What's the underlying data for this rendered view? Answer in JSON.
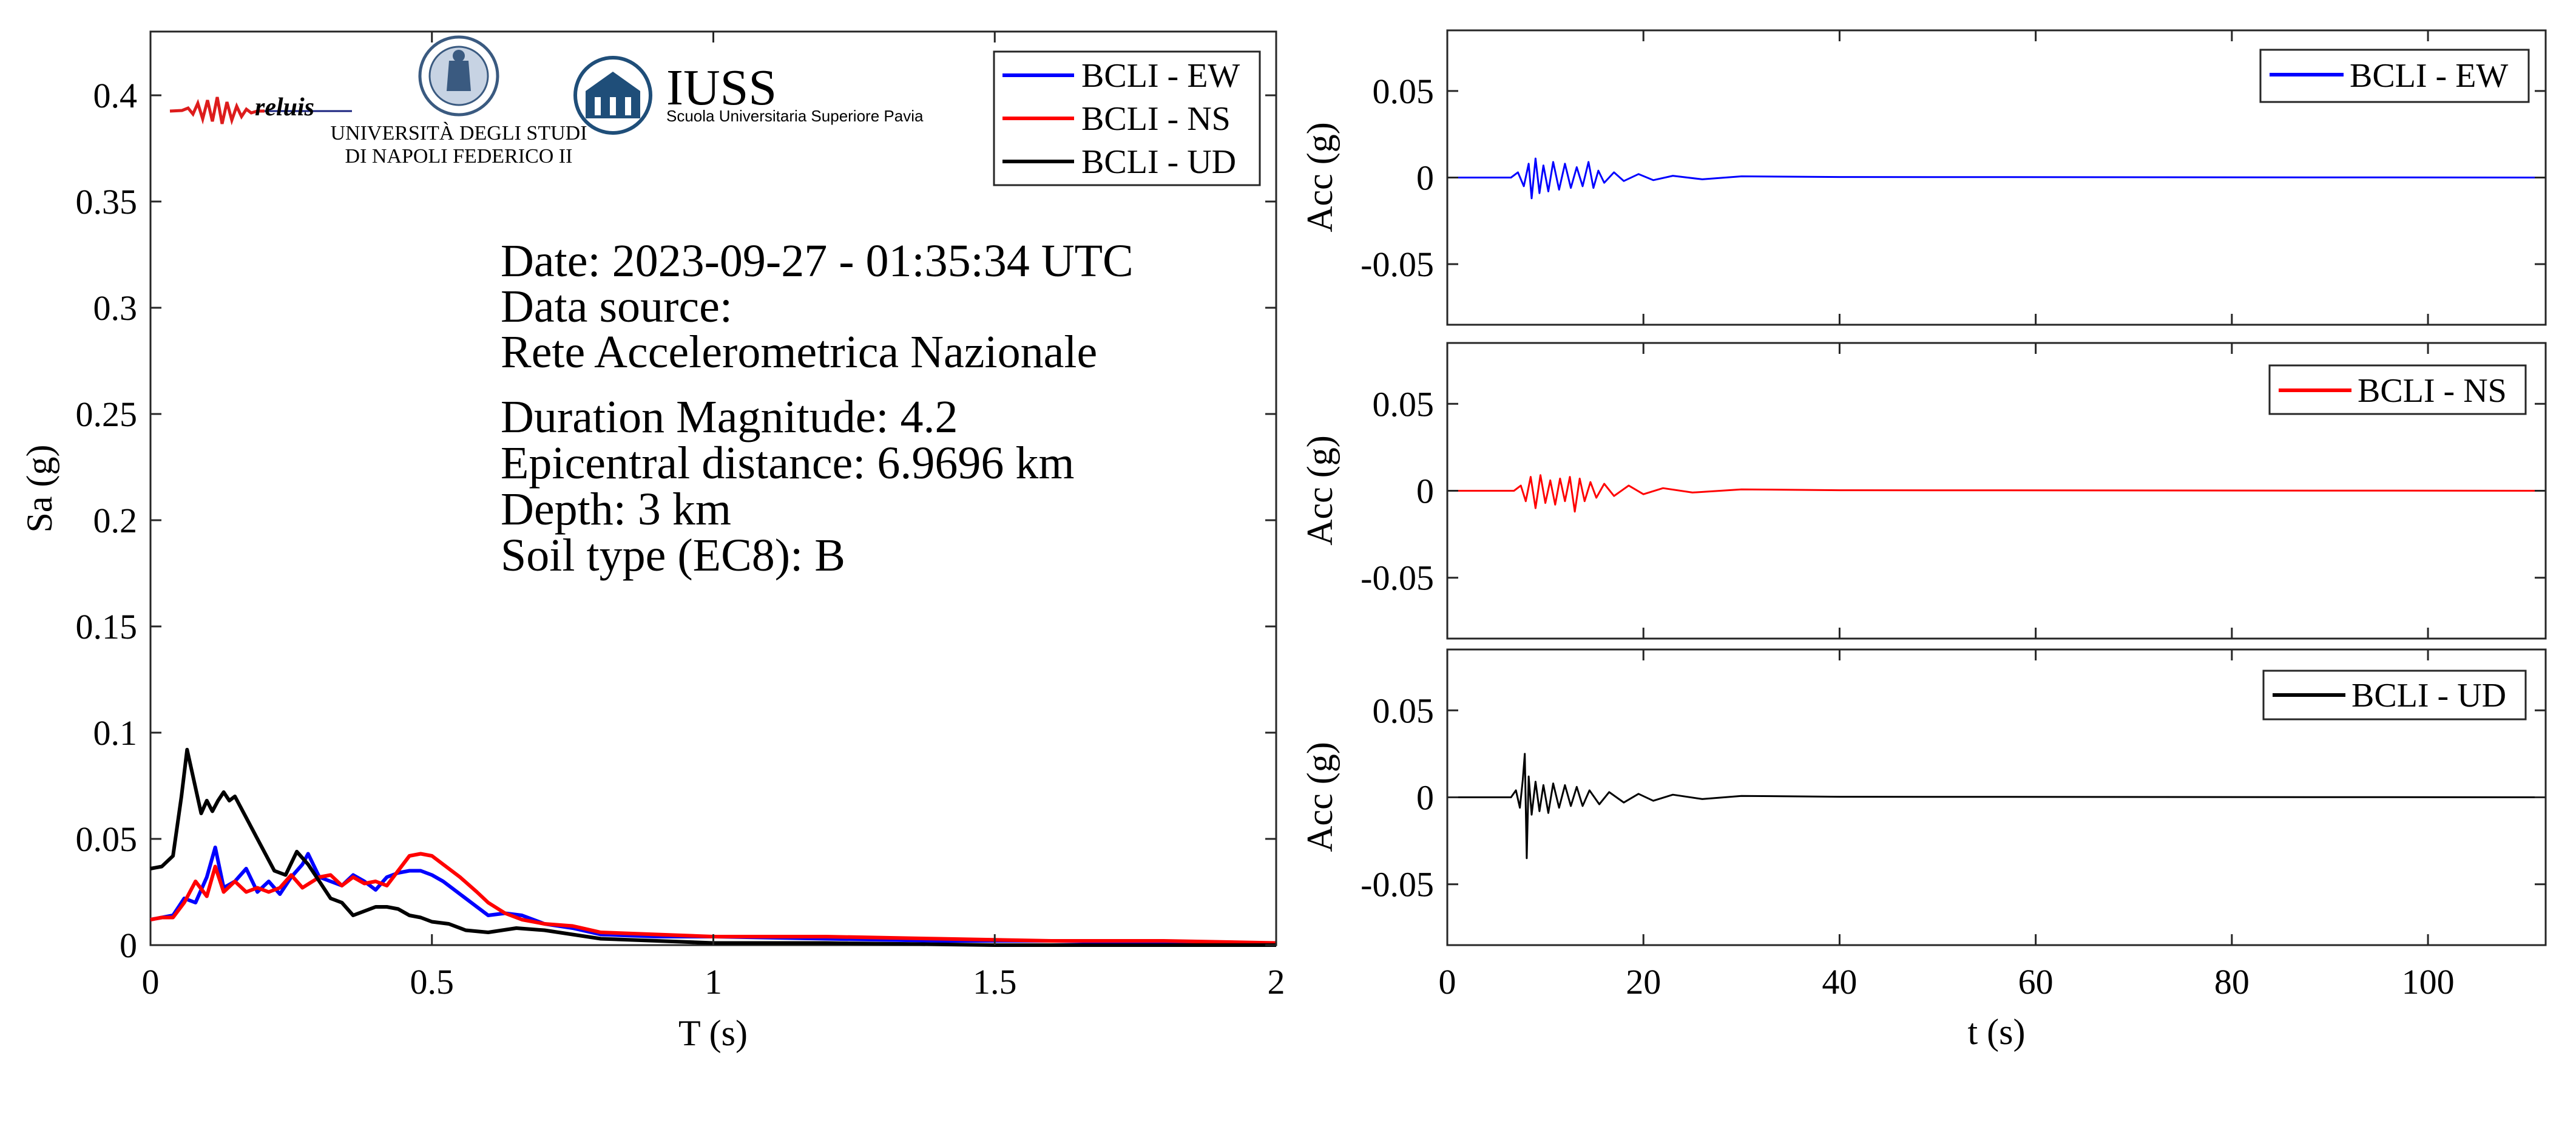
{
  "colors": {
    "ew": "#0000ff",
    "ns": "#ff0000",
    "ud": "#000000",
    "iuss": "#1f4e79"
  },
  "logos": {
    "reluis": "reluis",
    "unina_line1": "UNIVERSITÀ DEGLI STUDI",
    "unina_line2": "DI NAPOLI FEDERICO II",
    "iuss_title": "IUSS",
    "iuss_subtitle": "Scuola Universitaria Superiore Pavia"
  },
  "info": {
    "date": "Date: 2023-09-27 - 01:35:34 UTC",
    "source_label": "Data source:",
    "source": "Rete Accelerometrica Nazionale",
    "magnitude": "Duration Magnitude: 4.2",
    "distance": "Epicentral distance: 6.9696 km",
    "depth": "Depth: 3 km",
    "soil": "Soil type (EC8): B"
  },
  "chart_data": [
    {
      "type": "line",
      "xlabel": "T (s)",
      "ylabel": "Sa (g)",
      "xlim": [
        0,
        2
      ],
      "ylim": [
        0,
        0.43
      ],
      "xticks": [
        0,
        0.5,
        1,
        1.5,
        2
      ],
      "xtick_labels": [
        "0",
        "0.5",
        "1",
        "1.5",
        "2"
      ],
      "yticks": [
        0,
        0.05,
        0.1,
        0.15,
        0.2,
        0.25,
        0.3,
        0.35,
        0.4
      ],
      "ytick_labels": [
        "0",
        "0.05",
        "0.1",
        "0.15",
        "0.2",
        "0.25",
        "0.3",
        "0.35",
        "0.4"
      ],
      "legend_placement": "top-right",
      "grid": false,
      "series": [
        {
          "name": "BCLI - EW",
          "color": "#0000ff",
          "x": [
            0,
            0.02,
            0.04,
            0.06,
            0.08,
            0.1,
            0.115,
            0.13,
            0.15,
            0.17,
            0.19,
            0.21,
            0.23,
            0.25,
            0.27,
            0.28,
            0.3,
            0.32,
            0.34,
            0.36,
            0.38,
            0.4,
            0.42,
            0.44,
            0.46,
            0.48,
            0.5,
            0.52,
            0.55,
            0.58,
            0.6,
            0.63,
            0.66,
            0.7,
            0.75,
            0.8,
            0.9,
            1.0,
            1.2,
            1.4,
            1.6,
            1.8,
            2.0
          ],
          "y": [
            0.012,
            0.013,
            0.014,
            0.022,
            0.02,
            0.032,
            0.046,
            0.027,
            0.03,
            0.036,
            0.025,
            0.03,
            0.024,
            0.032,
            0.038,
            0.043,
            0.032,
            0.03,
            0.028,
            0.033,
            0.03,
            0.026,
            0.032,
            0.034,
            0.035,
            0.035,
            0.033,
            0.03,
            0.024,
            0.018,
            0.014,
            0.015,
            0.014,
            0.01,
            0.008,
            0.005,
            0.004,
            0.004,
            0.003,
            0.002,
            0.002,
            0.001,
            0.001
          ]
        },
        {
          "name": "BCLI - NS",
          "color": "#ff0000",
          "x": [
            0,
            0.02,
            0.04,
            0.06,
            0.08,
            0.1,
            0.115,
            0.13,
            0.15,
            0.17,
            0.19,
            0.21,
            0.23,
            0.25,
            0.27,
            0.3,
            0.32,
            0.34,
            0.36,
            0.38,
            0.4,
            0.42,
            0.44,
            0.46,
            0.48,
            0.5,
            0.52,
            0.55,
            0.58,
            0.6,
            0.63,
            0.66,
            0.7,
            0.75,
            0.8,
            0.9,
            1.0,
            1.2,
            1.4,
            1.6,
            1.8,
            2.0
          ],
          "y": [
            0.012,
            0.013,
            0.013,
            0.02,
            0.03,
            0.023,
            0.037,
            0.025,
            0.03,
            0.025,
            0.027,
            0.025,
            0.027,
            0.033,
            0.027,
            0.032,
            0.033,
            0.028,
            0.032,
            0.029,
            0.03,
            0.028,
            0.035,
            0.042,
            0.043,
            0.042,
            0.038,
            0.032,
            0.025,
            0.02,
            0.015,
            0.012,
            0.01,
            0.009,
            0.006,
            0.005,
            0.004,
            0.004,
            0.003,
            0.002,
            0.002,
            0.001
          ]
        },
        {
          "name": "BCLI - UD",
          "color": "#000000",
          "x": [
            0,
            0.02,
            0.04,
            0.055,
            0.065,
            0.075,
            0.09,
            0.1,
            0.11,
            0.12,
            0.13,
            0.14,
            0.15,
            0.17,
            0.19,
            0.2,
            0.22,
            0.24,
            0.26,
            0.28,
            0.3,
            0.32,
            0.34,
            0.36,
            0.38,
            0.4,
            0.42,
            0.44,
            0.46,
            0.48,
            0.5,
            0.53,
            0.56,
            0.6,
            0.65,
            0.7,
            0.75,
            0.8,
            0.9,
            1.0,
            1.2,
            1.5,
            2.0
          ],
          "y": [
            0.036,
            0.037,
            0.042,
            0.07,
            0.092,
            0.08,
            0.062,
            0.068,
            0.063,
            0.068,
            0.072,
            0.068,
            0.07,
            0.06,
            0.05,
            0.045,
            0.035,
            0.033,
            0.044,
            0.038,
            0.03,
            0.022,
            0.02,
            0.014,
            0.016,
            0.018,
            0.018,
            0.017,
            0.014,
            0.013,
            0.011,
            0.01,
            0.007,
            0.006,
            0.008,
            0.007,
            0.005,
            0.003,
            0.002,
            0.001,
            0.001,
            0.0,
            0.0
          ]
        }
      ]
    },
    {
      "type": "line",
      "xlabel": "",
      "ylabel": "Acc (g)",
      "xlim": [
        0,
        112
      ],
      "ylim": [
        -0.085,
        0.085
      ],
      "yticks": [
        -0.05,
        0,
        0.05
      ],
      "ytick_labels": [
        "-0.05",
        "0",
        "0.05"
      ],
      "legend_placement": "top-right",
      "series": [
        {
          "name": "BCLI - EW",
          "color": "#0000ff",
          "x": [
            0,
            6.5,
            7.2,
            7.8,
            8.3,
            8.6,
            9.0,
            9.4,
            9.8,
            10.3,
            10.8,
            11.4,
            12.0,
            12.6,
            13.2,
            13.8,
            14.4,
            14.9,
            15.4,
            16.0,
            17.0,
            18.0,
            19.5,
            21.0,
            23.0,
            26.0,
            30.0,
            40.0,
            112.0
          ],
          "y": [
            0,
            0.0,
            0.003,
            -0.005,
            0.008,
            -0.012,
            0.011,
            -0.009,
            0.007,
            -0.008,
            0.009,
            -0.007,
            0.008,
            -0.006,
            0.006,
            -0.005,
            0.009,
            -0.006,
            0.004,
            -0.003,
            0.003,
            -0.002,
            0.002,
            -0.0015,
            0.001,
            -0.001,
            0.0007,
            0.0003,
            0
          ]
        },
        {
          "name": "BCLI - NS",
          "color": "#ff0000"
        },
        {
          "name": "BCLI - UD",
          "color": "#000000"
        }
      ]
    },
    {
      "type": "line",
      "xlabel": "",
      "ylabel": "Acc (g)",
      "xlim": [
        0,
        112
      ],
      "ylim": [
        -0.085,
        0.085
      ],
      "yticks": [
        -0.05,
        0,
        0.05
      ],
      "ytick_labels": [
        "-0.05",
        "0",
        "0.05"
      ],
      "legend_placement": "top-right",
      "series": [
        {
          "name": "BCLI - NS",
          "color": "#ff0000",
          "x": [
            0,
            6.8,
            7.5,
            8.0,
            8.5,
            9.0,
            9.5,
            10.0,
            10.5,
            11.0,
            11.5,
            12.0,
            12.5,
            13.0,
            13.5,
            14.0,
            14.6,
            15.2,
            16.0,
            17.0,
            18.5,
            20.0,
            22.0,
            25.0,
            30.0,
            40.0,
            112.0
          ],
          "y": [
            0,
            0.0,
            0.003,
            -0.006,
            0.008,
            -0.01,
            0.009,
            -0.007,
            0.006,
            -0.008,
            0.007,
            -0.006,
            0.008,
            -0.012,
            0.007,
            -0.006,
            0.005,
            -0.004,
            0.004,
            -0.003,
            0.003,
            -0.002,
            0.0015,
            -0.001,
            0.0008,
            0.0003,
            0
          ]
        }
      ]
    },
    {
      "type": "line",
      "xlabel": "t (s)",
      "ylabel": "Acc (g)",
      "xlim": [
        0,
        112
      ],
      "ylim": [
        -0.085,
        0.085
      ],
      "xticks": [
        0,
        20,
        40,
        60,
        80,
        100
      ],
      "xtick_labels": [
        "0",
        "20",
        "40",
        "60",
        "80",
        "100"
      ],
      "yticks": [
        -0.05,
        0,
        0.05
      ],
      "ytick_labels": [
        "-0.05",
        "0",
        "0.05"
      ],
      "legend_placement": "top-right",
      "series": [
        {
          "name": "BCLI - UD",
          "color": "#000000",
          "x": [
            0,
            6.5,
            7.0,
            7.4,
            7.7,
            7.9,
            8.1,
            8.3,
            8.6,
            9.0,
            9.4,
            9.8,
            10.3,
            10.8,
            11.4,
            12.0,
            12.6,
            13.2,
            13.8,
            14.5,
            15.5,
            16.5,
            18.0,
            19.5,
            21.0,
            23.0,
            26.0,
            30.0,
            40.0,
            112.0
          ],
          "y": [
            0,
            0.0,
            0.004,
            -0.006,
            0.01,
            0.025,
            -0.035,
            0.012,
            -0.01,
            0.009,
            -0.008,
            0.007,
            -0.009,
            0.008,
            -0.006,
            0.007,
            -0.005,
            0.006,
            -0.005,
            0.004,
            -0.004,
            0.003,
            -0.003,
            0.002,
            -0.002,
            0.0015,
            -0.001,
            0.0008,
            0.0003,
            0
          ]
        }
      ]
    }
  ]
}
